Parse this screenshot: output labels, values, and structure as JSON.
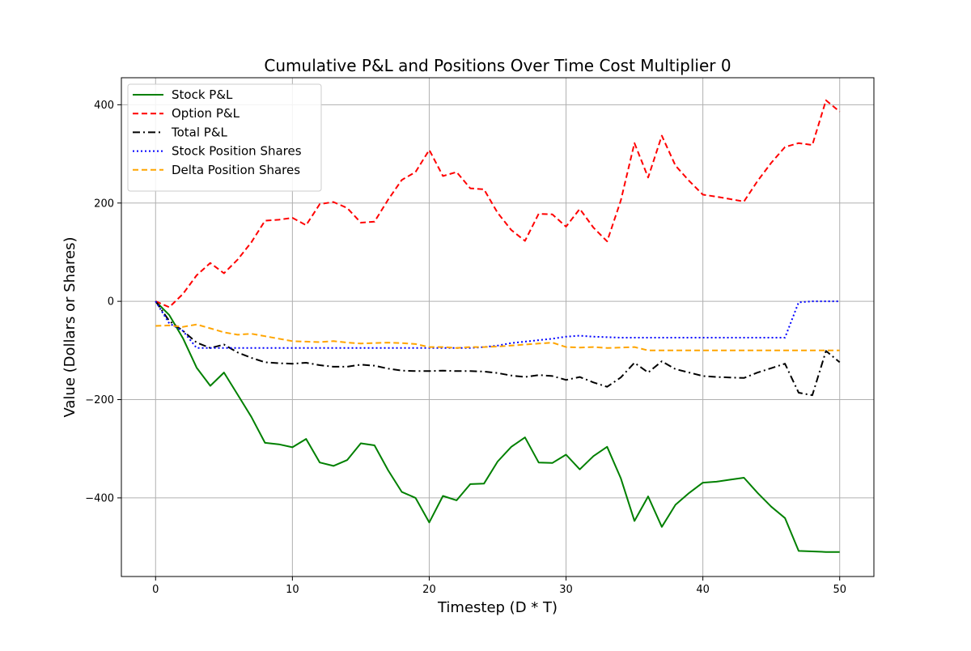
{
  "chart_data": {
    "type": "line",
    "title": "Cumulative P&L and Positions Over Time Cost Multiplier 0",
    "xlabel": "Timestep (D * T)",
    "ylabel": "Value (Dollars or Shares)",
    "xlim": [
      -2.5,
      52.5
    ],
    "ylim": [
      -560,
      455
    ],
    "xticks": [
      0,
      10,
      20,
      30,
      40,
      50
    ],
    "yticks": [
      -400,
      -200,
      0,
      200,
      400
    ],
    "xtick_labels": [
      "0",
      "10",
      "20",
      "30",
      "40",
      "50"
    ],
    "ytick_labels": [
      "−400",
      "−200",
      "0",
      "200",
      "400"
    ],
    "grid": true,
    "legend_position": "top-left",
    "x": [
      0,
      1,
      2,
      3,
      4,
      5,
      6,
      7,
      8,
      9,
      10,
      11,
      12,
      13,
      14,
      15,
      16,
      17,
      18,
      19,
      20,
      21,
      22,
      23,
      24,
      25,
      26,
      27,
      28,
      29,
      30,
      31,
      32,
      33,
      34,
      35,
      36,
      37,
      38,
      39,
      40,
      41,
      42,
      43,
      44,
      45,
      46,
      47,
      48,
      49,
      50
    ],
    "series": [
      {
        "name": "Stock P&L",
        "color": "#008000",
        "style": "solid",
        "values": [
          0,
          -28,
          -75,
          -135,
          -172,
          -145,
          -190,
          -235,
          -288,
          -291,
          -297,
          -280,
          -328,
          -335,
          -323,
          -289,
          -293,
          -344,
          -388,
          -400,
          -450,
          -396,
          -405,
          -372,
          -371,
          -326,
          -296,
          -277,
          -328,
          -329,
          -312,
          -342,
          -315,
          -296,
          -360,
          -447,
          -397,
          -459,
          -414,
          -390,
          -369,
          -367,
          -363,
          -359,
          -390,
          -418,
          -441,
          -508,
          -509,
          -510,
          -510
        ]
      },
      {
        "name": "Option P&L",
        "color": "#ff0000",
        "style": "dashed",
        "values": [
          0,
          -12,
          15,
          53,
          78,
          57,
          85,
          120,
          164,
          166,
          170,
          155,
          198,
          202,
          190,
          160,
          162,
          207,
          247,
          263,
          308,
          255,
          263,
          230,
          228,
          180,
          145,
          123,
          178,
          177,
          152,
          188,
          150,
          122,
          205,
          322,
          252,
          337,
          276,
          245,
          217,
          213,
          208,
          203,
          245,
          282,
          314,
          322,
          318,
          409,
          386
        ]
      },
      {
        "name": "Total P&L",
        "color": "#000000",
        "style": "dashdot",
        "values": [
          0,
          -40,
          -60,
          -84,
          -95,
          -88,
          -104,
          -115,
          -124,
          -126,
          -127,
          -125,
          -130,
          -133,
          -133,
          -129,
          -131,
          -137,
          -141,
          -142,
          -142,
          -141,
          -142,
          -142,
          -143,
          -146,
          -151,
          -154,
          -150,
          -152,
          -160,
          -154,
          -165,
          -174,
          -155,
          -125,
          -145,
          -122,
          -138,
          -145,
          -152,
          -154,
          -155,
          -156,
          -145,
          -136,
          -127,
          -186,
          -191,
          -101,
          -124
        ]
      },
      {
        "name": "Stock Position Shares",
        "color": "#0000ff",
        "style": "dotted",
        "values": [
          0,
          -45,
          -60,
          -95,
          -95,
          -95,
          -95,
          -95,
          -95,
          -95,
          -95,
          -95,
          -95,
          -95,
          -95,
          -95,
          -95,
          -95,
          -95,
          -95,
          -95,
          -95,
          -95,
          -95,
          -93,
          -90,
          -85,
          -82,
          -79,
          -76,
          -72,
          -70,
          -72,
          -73,
          -74,
          -74,
          -74,
          -74,
          -74,
          -74,
          -74,
          -74,
          -74,
          -74,
          -74,
          -74,
          -74,
          -2,
          0,
          0,
          0
        ]
      },
      {
        "name": "Delta Position Shares",
        "color": "#ffa500",
        "style": "dashed",
        "values": [
          -50,
          -49,
          -52,
          -47,
          -55,
          -63,
          -68,
          -66,
          -71,
          -76,
          -81,
          -82,
          -83,
          -81,
          -84,
          -86,
          -85,
          -84,
          -85,
          -87,
          -93,
          -93,
          -95,
          -93,
          -93,
          -92,
          -90,
          -88,
          -86,
          -84,
          -93,
          -94,
          -93,
          -95,
          -94,
          -93,
          -100,
          -100,
          -100,
          -100,
          -100,
          -100,
          -100,
          -100,
          -100,
          -100,
          -100,
          -100,
          -100,
          -100,
          -100
        ]
      }
    ]
  }
}
